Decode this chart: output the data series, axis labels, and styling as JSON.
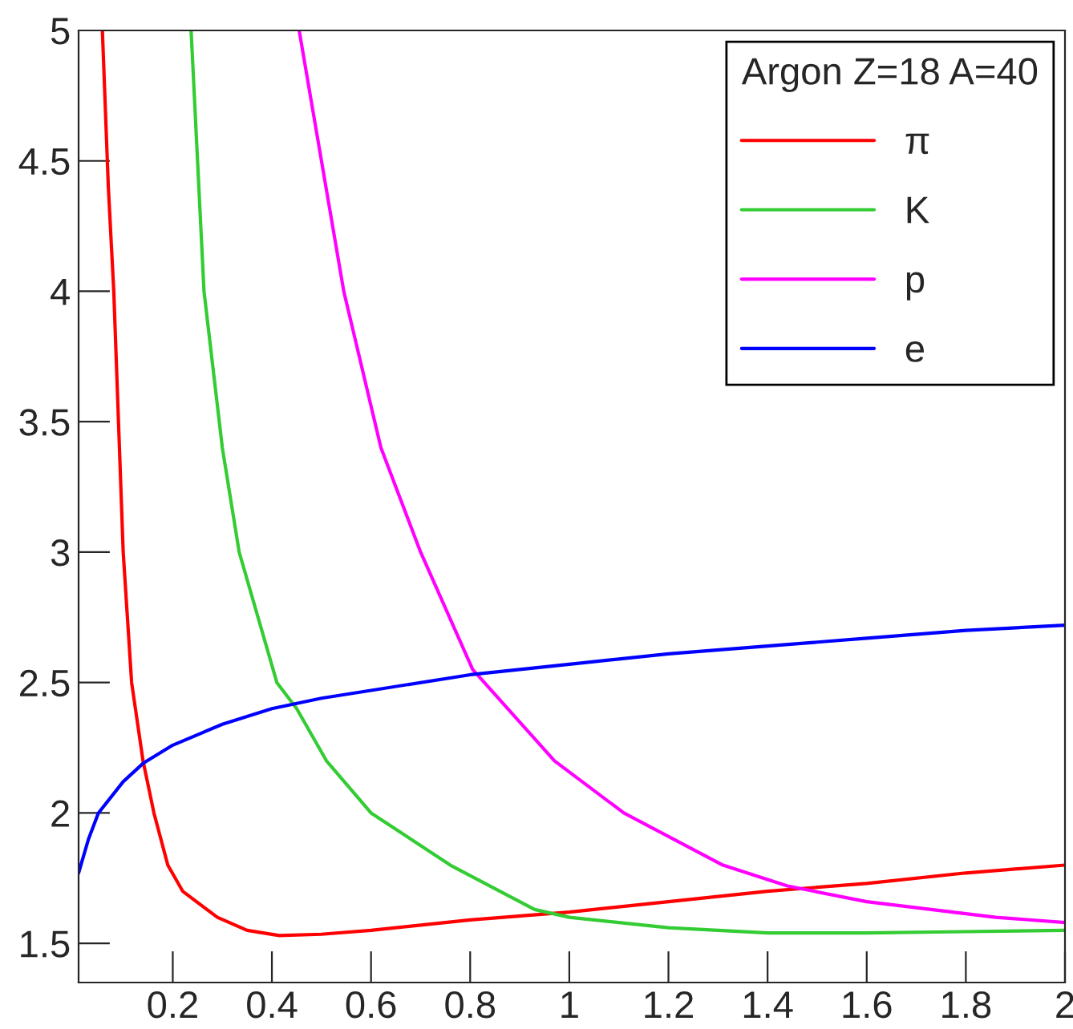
{
  "chart_data": {
    "type": "line",
    "legend_title": "Argon Z=18 A=40",
    "legend": "top right",
    "grid": false,
    "marker": "none",
    "line_style": "solid",
    "xlim": [
      0.01,
      2
    ],
    "ylim": [
      1.35,
      5
    ],
    "xticks": [
      0.2,
      0.4,
      0.6,
      0.8,
      1,
      1.2,
      1.4,
      1.6,
      1.8,
      2
    ],
    "yticks": [
      1.5,
      2,
      2.5,
      3,
      3.5,
      4,
      4.5,
      5
    ],
    "series": [
      {
        "name": "π",
        "color": "#ff0000",
        "x": [
          0.058,
          0.07,
          0.081,
          0.1,
          0.117,
          0.14,
          0.162,
          0.19,
          0.22,
          0.29,
          0.35,
          0.415,
          0.5,
          0.6,
          0.8,
          1.0,
          1.2,
          1.4,
          1.6,
          1.8,
          2.0
        ],
        "values": [
          5.0,
          4.4,
          4.0,
          3.0,
          2.5,
          2.2,
          2.0,
          1.8,
          1.7,
          1.6,
          1.55,
          1.53,
          1.535,
          1.55,
          1.59,
          1.62,
          1.66,
          1.7,
          1.73,
          1.77,
          1.8
        ]
      },
      {
        "name": "K",
        "color": "#33cc33",
        "x": [
          0.237,
          0.263,
          0.3,
          0.334,
          0.41,
          0.45,
          0.51,
          0.6,
          0.76,
          0.93,
          1.0,
          1.2,
          1.4,
          1.6,
          1.8,
          2.0
        ],
        "values": [
          5.0,
          4.0,
          3.4,
          3.0,
          2.5,
          2.4,
          2.2,
          2.0,
          1.8,
          1.63,
          1.6,
          1.56,
          1.54,
          1.54,
          1.545,
          1.55
        ]
      },
      {
        "name": "p",
        "color": "#ff00ff",
        "x": [
          0.455,
          0.545,
          0.62,
          0.7,
          0.805,
          0.97,
          1.11,
          1.31,
          1.44,
          1.6,
          1.86,
          2.0
        ],
        "values": [
          5.0,
          4.0,
          3.4,
          3.0,
          2.55,
          2.2,
          2.0,
          1.8,
          1.72,
          1.66,
          1.6,
          1.58
        ]
      },
      {
        "name": "e",
        "color": "#0000ff",
        "x": [
          0.01,
          0.03,
          0.05,
          0.1,
          0.14,
          0.2,
          0.3,
          0.4,
          0.5,
          0.6,
          0.8,
          1.0,
          1.2,
          1.4,
          1.6,
          1.8,
          2.0
        ],
        "values": [
          1.77,
          1.9,
          2.0,
          2.12,
          2.19,
          2.26,
          2.34,
          2.4,
          2.44,
          2.47,
          2.53,
          2.57,
          2.61,
          2.64,
          2.67,
          2.7,
          2.72
        ]
      }
    ]
  }
}
